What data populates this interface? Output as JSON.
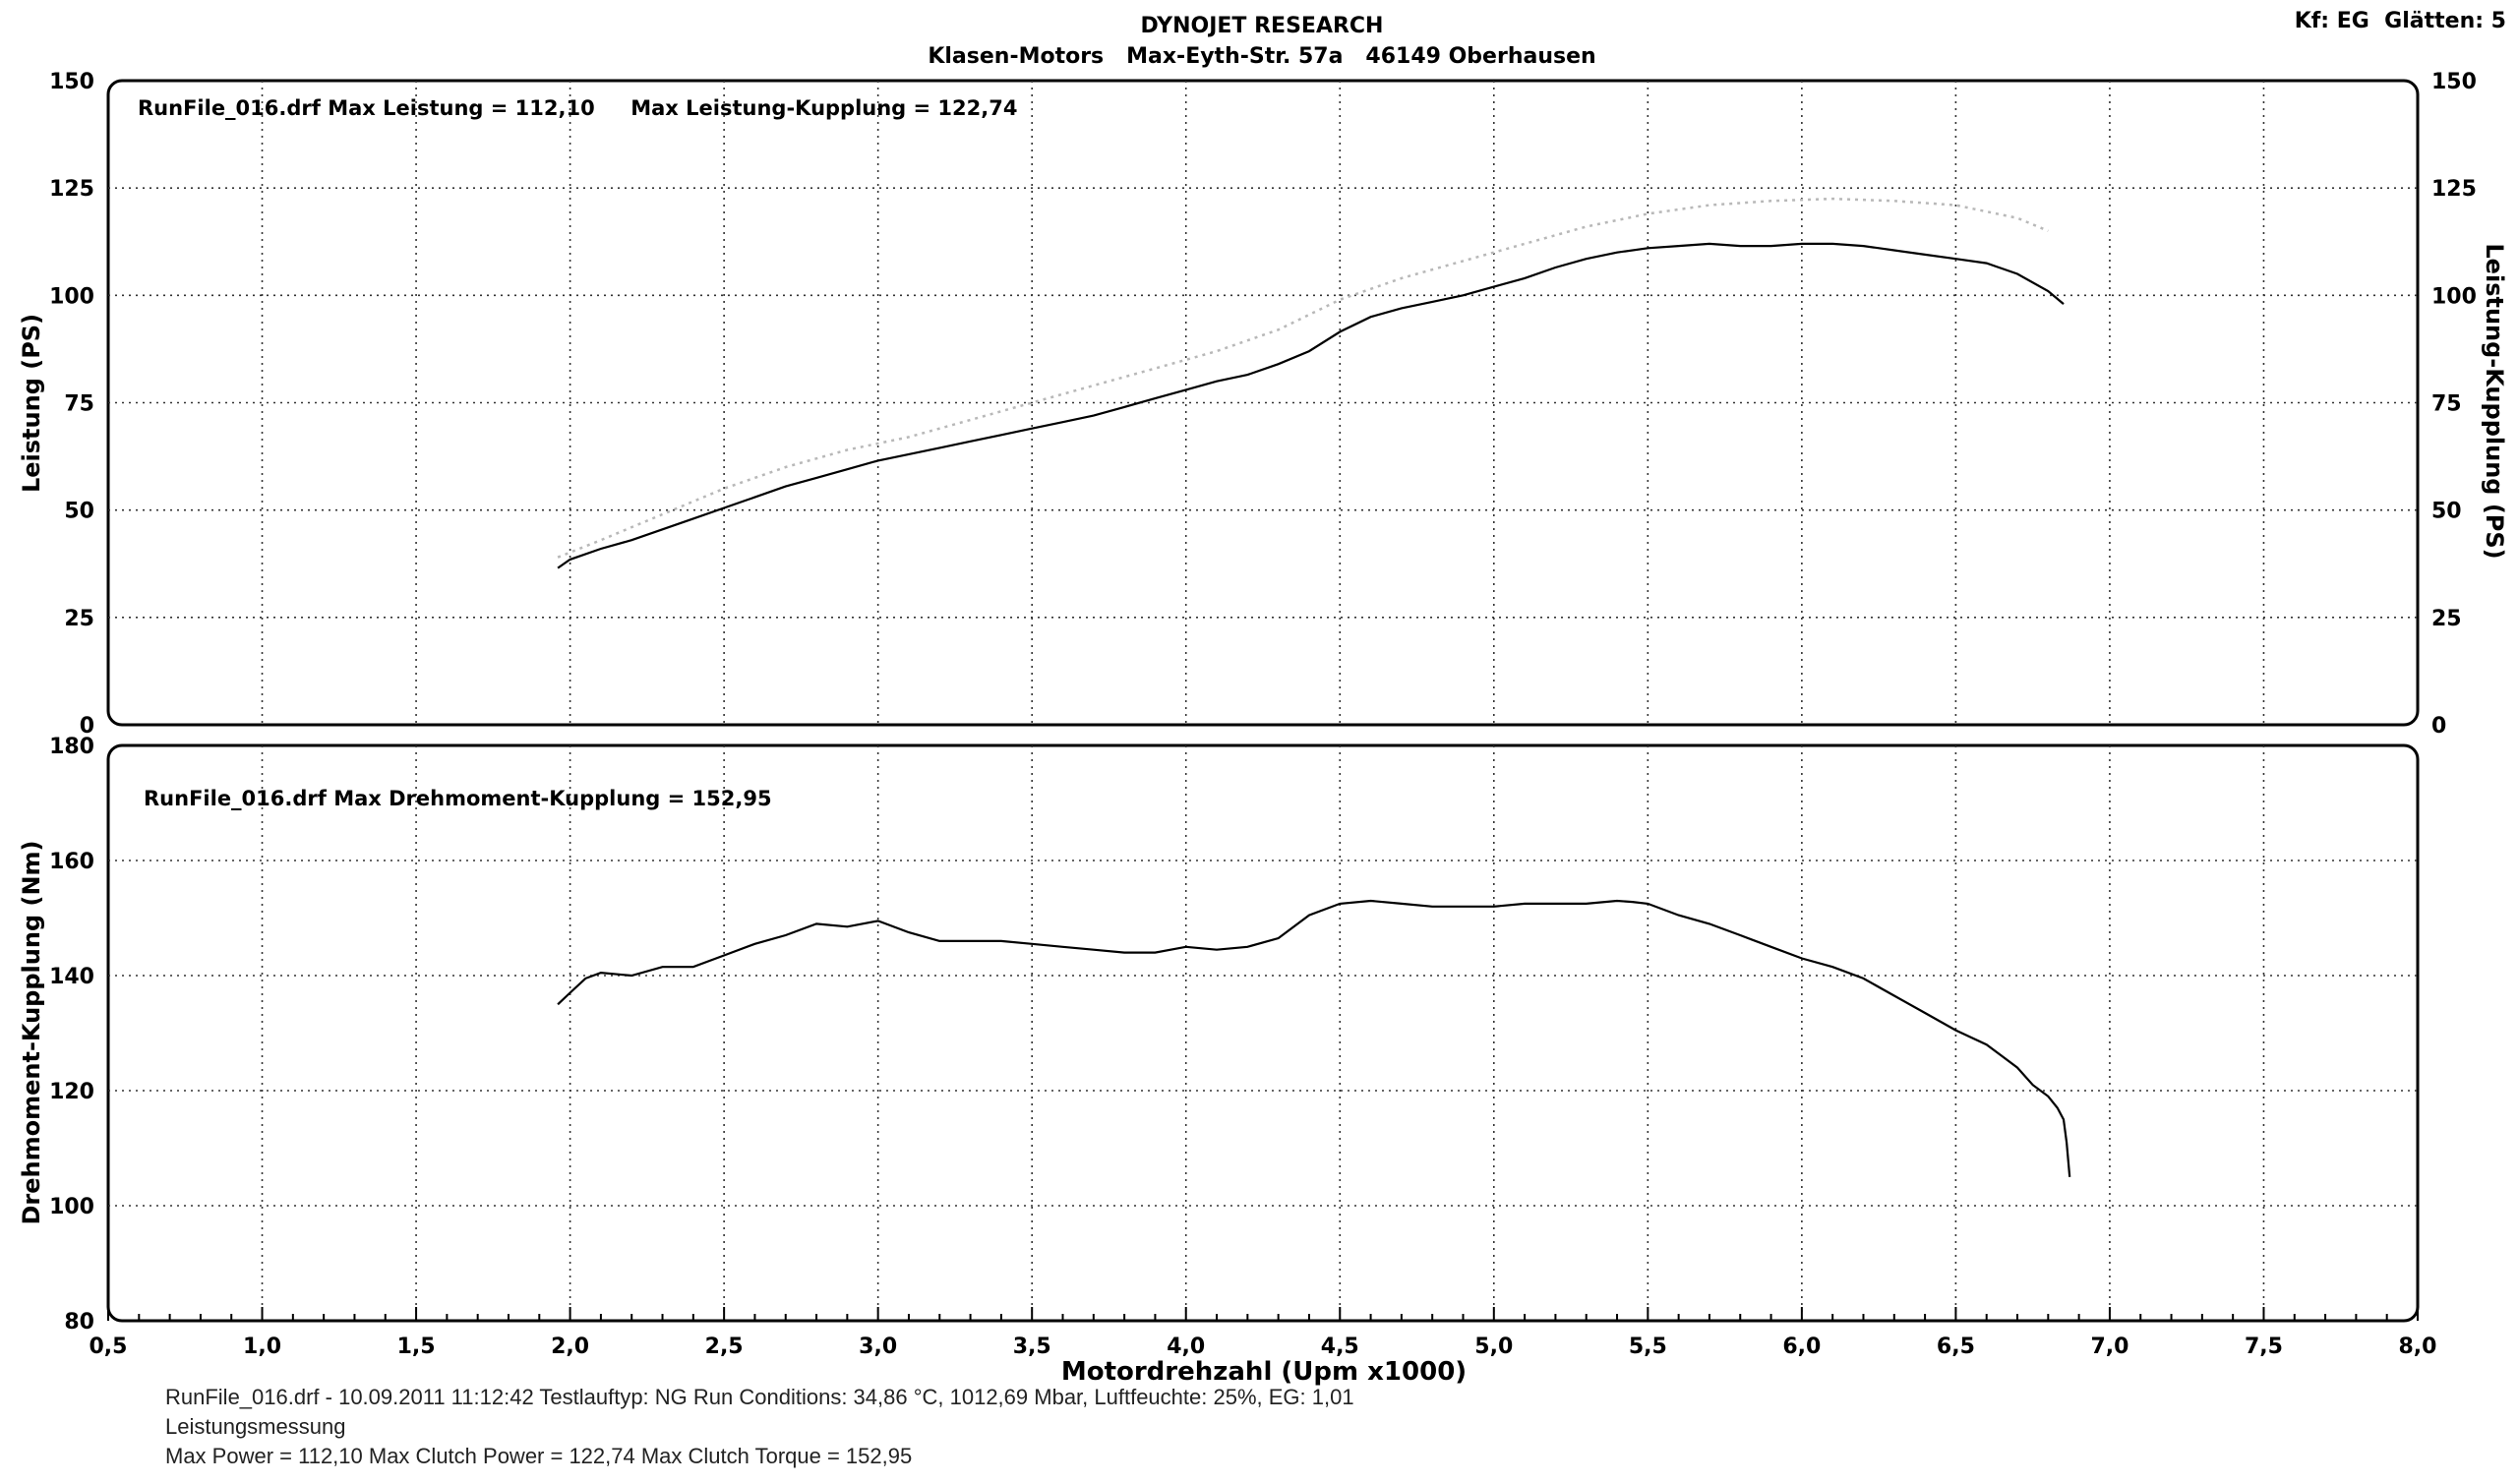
{
  "header": {
    "title": "DYNOJET RESEARCH",
    "address": "Klasen-Motors   Max-Eyth-Str. 57a   46149 Oberhausen",
    "corner": "Kf: EG  Glätten: 5"
  },
  "chart_data": [
    {
      "type": "line",
      "title": "RunFile_016.drf Max Leistung = 112,10     Max Leistung-Kupplung = 122,74",
      "ylabel": "Leistung (PS)",
      "ylabel_right": "Leistung-Kupplung (PS)",
      "xlim": [
        0.5,
        8.0
      ],
      "ylim": [
        0,
        150
      ],
      "yticks": [
        "0",
        "25",
        "50",
        "75",
        "100",
        "125",
        "150"
      ],
      "grid": true,
      "series": [
        {
          "name": "Leistung",
          "style": "solid",
          "x": [
            1.96,
            2.0,
            2.1,
            2.2,
            2.3,
            2.4,
            2.5,
            2.6,
            2.7,
            2.8,
            2.9,
            3.0,
            3.1,
            3.2,
            3.3,
            3.4,
            3.5,
            3.6,
            3.7,
            3.8,
            3.9,
            4.0,
            4.1,
            4.2,
            4.3,
            4.4,
            4.5,
            4.6,
            4.7,
            4.8,
            4.9,
            5.0,
            5.1,
            5.2,
            5.3,
            5.4,
            5.5,
            5.6,
            5.7,
            5.8,
            5.9,
            6.0,
            6.1,
            6.2,
            6.3,
            6.4,
            6.5,
            6.6,
            6.7,
            6.8,
            6.85
          ],
          "y": [
            36.5,
            38.5,
            41,
            43,
            45.5,
            48,
            50.5,
            53,
            55.5,
            57.5,
            59.5,
            61.5,
            63,
            64.5,
            66,
            67.5,
            69,
            70.5,
            72,
            74,
            76,
            78,
            80,
            81.5,
            84,
            87,
            91.5,
            95,
            97,
            98.5,
            100,
            102,
            104,
            106.5,
            108.5,
            110,
            111,
            111.5,
            112,
            111.5,
            111.5,
            112,
            112,
            111.5,
            110.5,
            109.5,
            108.5,
            107.5,
            105,
            101,
            98
          ]
        },
        {
          "name": "Leistung-Kupplung",
          "style": "dotted",
          "x": [
            1.96,
            2.1,
            2.3,
            2.5,
            2.7,
            2.9,
            3.1,
            3.3,
            3.5,
            3.7,
            3.9,
            4.1,
            4.3,
            4.5,
            4.7,
            4.9,
            5.1,
            5.3,
            5.5,
            5.7,
            5.9,
            6.1,
            6.3,
            6.5,
            6.7,
            6.8
          ],
          "y": [
            39,
            43,
            49,
            55,
            60,
            64,
            67,
            71,
            75,
            79,
            83,
            87,
            92,
            99,
            104,
            108,
            112,
            116,
            119,
            121,
            122,
            122.5,
            122,
            121,
            118,
            115
          ]
        }
      ]
    },
    {
      "type": "line",
      "title": "RunFile_016.drf Max Drehmoment-Kupplung = 152,95",
      "xlabel": "Motordrehzahl (Upm x1000)",
      "ylabel": "Drehmoment-Kupplung (Nm)",
      "xlim": [
        0.5,
        8.0
      ],
      "ylim": [
        80,
        180
      ],
      "yticks": [
        "80",
        "100",
        "120",
        "140",
        "160",
        "180"
      ],
      "xticks": [
        "0,5",
        "1,0",
        "1,5",
        "2,0",
        "2,5",
        "3,0",
        "3,5",
        "4,0",
        "4,5",
        "5,0",
        "5,5",
        "6,0",
        "6,5",
        "7,0",
        "7,5",
        "8,0"
      ],
      "grid": true,
      "series": [
        {
          "name": "Drehmoment-Kupplung",
          "style": "solid",
          "x": [
            1.96,
            2.0,
            2.05,
            2.1,
            2.2,
            2.3,
            2.4,
            2.5,
            2.6,
            2.7,
            2.8,
            2.9,
            3.0,
            3.1,
            3.2,
            3.3,
            3.4,
            3.5,
            3.6,
            3.7,
            3.8,
            3.9,
            4.0,
            4.1,
            4.2,
            4.3,
            4.4,
            4.5,
            4.6,
            4.7,
            4.8,
            4.9,
            5.0,
            5.1,
            5.2,
            5.3,
            5.4,
            5.45,
            5.5,
            5.6,
            5.7,
            5.8,
            5.9,
            6.0,
            6.1,
            6.2,
            6.3,
            6.4,
            6.5,
            6.6,
            6.7,
            6.75,
            6.8,
            6.83,
            6.85,
            6.86,
            6.87
          ],
          "y": [
            135,
            137,
            139.5,
            140.5,
            140,
            141.5,
            141.5,
            143.5,
            145.5,
            147,
            149,
            148.5,
            149.5,
            147.5,
            146,
            146,
            146,
            145.5,
            145,
            144.5,
            144,
            144,
            145,
            144.5,
            145,
            146.5,
            150.5,
            152.5,
            153,
            152.5,
            152,
            152,
            152,
            152.5,
            152.5,
            152.5,
            153,
            152.8,
            152.5,
            150.5,
            149,
            147,
            145,
            143,
            141.5,
            139.5,
            136.5,
            133.5,
            130.5,
            128,
            124,
            121,
            119,
            117,
            115,
            111,
            105
          ]
        }
      ]
    }
  ],
  "footer": {
    "line1": "RunFile_016.drf - 10.09.2011 11:12:42  Testlauftyp: NG  Run Conditions: 34,86 °C, 1012,69 Mbar,  Luftfeuchte: 25%, EG: 1,01",
    "line2": "Leistungsmessung",
    "line3": "Max Power = 112,10  Max Clutch Power = 122,74  Max Clutch Torque = 152,95"
  },
  "colors": {
    "line": "#000000",
    "dotted": "#b8b8b8",
    "grid": "#333333"
  }
}
